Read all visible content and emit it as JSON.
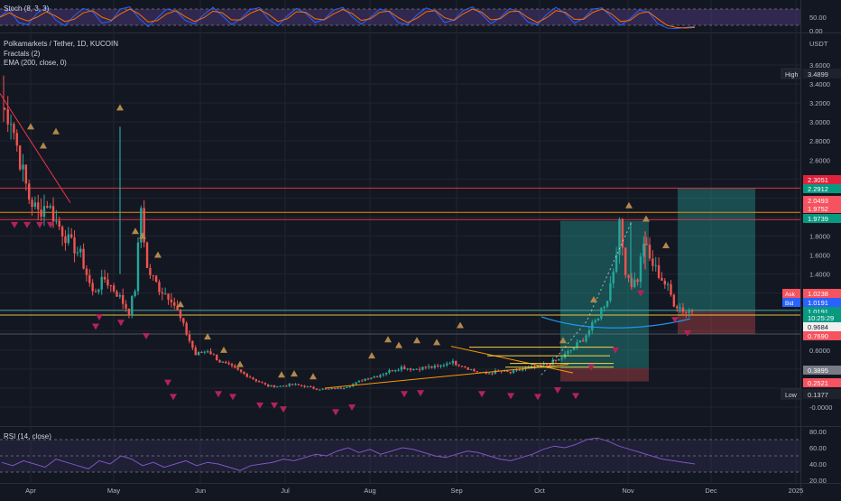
{
  "stoch": {
    "title": "Stoch (8, 3, 3)",
    "ticks": [
      "50.00",
      "0.00"
    ],
    "tick_values": [
      50,
      0
    ]
  },
  "main": {
    "symbol": "Polkamarkets / Tether, 1D, KUCOIN",
    "indicators": [
      "Fractals (2)",
      "EMA (200, close, 0)"
    ],
    "currency": "USDT",
    "ticks": [
      "3.6000",
      "3.4000",
      "3.2000",
      "3.0000",
      "2.8000",
      "2.6000",
      "2.4000",
      "2.2000",
      "2.0000",
      "1.8000",
      "1.6000",
      "1.4000",
      "1.2000",
      "1.0000",
      "0.8000",
      "0.6000",
      "0.4000",
      "0.2000",
      "-0.0000"
    ],
    "hidden_ticks": [
      "2.4000",
      "2.2000",
      "2.0000",
      "1.2000",
      "1.0000",
      "0.8000",
      "0.4000",
      "0.2000"
    ]
  },
  "price_labels": [
    {
      "text": "High",
      "value": "3.4899",
      "kind": "marker"
    },
    {
      "value": "2.3051",
      "color": "#e0213c"
    },
    {
      "value": "2.2912",
      "color": "#089981"
    },
    {
      "value": "2.0493",
      "color": "#f7525f"
    },
    {
      "value": "1.9752",
      "color": "#f7525f"
    },
    {
      "value": "1.9739",
      "color": "#089981"
    },
    {
      "text": "Ask",
      "value": "1.0238",
      "color": "#f7525f"
    },
    {
      "text": "Bid",
      "value": "1.0191",
      "color": "#2962ff"
    },
    {
      "value": "1.0191",
      "color": "#089981"
    },
    {
      "value": "10:25:29",
      "color": "#089981"
    },
    {
      "value": "0.9684",
      "color": "#f0f0f0"
    },
    {
      "value": "0.7690",
      "color": "#f7525f"
    },
    {
      "value": "0.3895",
      "color": "#787b86"
    },
    {
      "value": "0.2521",
      "color": "#f7525f"
    },
    {
      "text": "Low",
      "value": "0.1377",
      "kind": "marker"
    }
  ],
  "rsi": {
    "title": "RSI (14, close)",
    "ticks": [
      "80.00",
      "60.00",
      "40.00",
      "20.00"
    ],
    "tick_values": [
      80,
      60,
      40,
      20
    ]
  },
  "x_axis": {
    "labels": [
      "Apr",
      "May",
      "Jun",
      "Jul",
      "Aug",
      "Sep",
      "Oct",
      "Nov",
      "Dec",
      "2025"
    ]
  },
  "colors": {
    "up": "#26a69a",
    "down": "#ef5350",
    "bg": "#131722",
    "grid": "#1f2430",
    "fractal_up": "#b2884a",
    "fractal_down": "#b0235a",
    "stoch_k": "#2962ff",
    "stoch_d": "#ff6d00",
    "rsi": "#7e57c2",
    "ema": "#2196f3",
    "orange_line": "#ff9800",
    "red_line": "#f23645",
    "yellow_line": "#f5d547"
  },
  "chart_data": [
    {
      "type": "line",
      "name": "stochastic",
      "title": "Stoch (8, 3, 3)",
      "ylim": [
        0,
        100
      ],
      "series": [
        {
          "values": [
            52,
            78,
            30,
            22,
            65,
            85,
            40,
            18,
            55,
            82,
            70,
            28,
            35,
            80,
            88,
            46,
            15,
            48,
            80,
            72,
            38,
            25,
            60,
            86,
            55,
            22,
            44,
            78,
            85,
            42,
            18,
            54,
            82,
            64,
            30,
            42,
            76,
            86,
            52,
            24,
            50,
            80,
            70,
            30,
            22,
            58,
            84,
            72,
            30,
            40,
            74,
            88,
            60,
            26,
            48,
            82,
            70,
            32,
            22,
            60,
            86,
            64,
            28,
            46,
            80,
            84,
            50,
            20,
            44,
            76,
            68,
            26,
            10,
            8,
            12,
            16
          ]
        },
        {
          "values": [
            50,
            66,
            48,
            36,
            50,
            70,
            54,
            34,
            42,
            66,
            74,
            50,
            38,
            62,
            80,
            62,
            32,
            38,
            62,
            74,
            52,
            34,
            48,
            72,
            66,
            40,
            40,
            64,
            78,
            60,
            34,
            44,
            70,
            68,
            44,
            40,
            62,
            78,
            64,
            38,
            44,
            68,
            72,
            48,
            30,
            46,
            70,
            74,
            48,
            38,
            62,
            80,
            68,
            40,
            44,
            70,
            72,
            48,
            30,
            48,
            74,
            68,
            42,
            42,
            68,
            80,
            62,
            34,
            38,
            64,
            70,
            44,
            20,
            12,
            10,
            12
          ]
        }
      ]
    },
    {
      "type": "candlestick",
      "title": "Polkamarkets / Tether, 1D, KUCOIN",
      "ylabel": "USDT",
      "ylim": [
        -0.1,
        3.8
      ],
      "x": [
        "Apr",
        "May",
        "Jun",
        "Jul",
        "Aug",
        "Sep",
        "Oct",
        "Nov",
        "Dec",
        "2025"
      ],
      "approx_close_path": [
        [
          0,
          3.15
        ],
        [
          3,
          3.05
        ],
        [
          6,
          2.6
        ],
        [
          9,
          2.2
        ],
        [
          12,
          2.05
        ],
        [
          15,
          2.15
        ],
        [
          18,
          1.95
        ],
        [
          22,
          1.75
        ],
        [
          26,
          1.6
        ],
        [
          30,
          1.2
        ],
        [
          34,
          1.35
        ],
        [
          38,
          1.2
        ],
        [
          42,
          1.0
        ],
        [
          44,
          1.25
        ],
        [
          46,
          2.1
        ],
        [
          48,
          1.45
        ],
        [
          52,
          1.25
        ],
        [
          56,
          1.15
        ],
        [
          58,
          1.0
        ],
        [
          60,
          0.85
        ],
        [
          64,
          0.55
        ],
        [
          68,
          0.6
        ],
        [
          72,
          0.48
        ],
        [
          76,
          0.42
        ],
        [
          80,
          0.35
        ],
        [
          84,
          0.28
        ],
        [
          88,
          0.22
        ],
        [
          92,
          0.22
        ],
        [
          96,
          0.24
        ],
        [
          100,
          0.22
        ],
        [
          104,
          0.19
        ],
        [
          108,
          0.19
        ],
        [
          112,
          0.2
        ],
        [
          116,
          0.24
        ],
        [
          120,
          0.3
        ],
        [
          124,
          0.33
        ],
        [
          128,
          0.38
        ],
        [
          132,
          0.42
        ],
        [
          136,
          0.4
        ],
        [
          140,
          0.42
        ],
        [
          144,
          0.42
        ],
        [
          148,
          0.48
        ],
        [
          152,
          0.44
        ],
        [
          156,
          0.38
        ],
        [
          160,
          0.35
        ],
        [
          164,
          0.38
        ],
        [
          168,
          0.36
        ],
        [
          172,
          0.4
        ],
        [
          176,
          0.42
        ],
        [
          180,
          0.45
        ],
        [
          184,
          0.5
        ],
        [
          188,
          0.6
        ],
        [
          192,
          0.72
        ],
        [
          196,
          0.9
        ],
        [
          200,
          1.15
        ],
        [
          202,
          1.45
        ],
        [
          204,
          1.9
        ],
        [
          206,
          1.45
        ],
        [
          208,
          1.3
        ],
        [
          210,
          1.35
        ],
        [
          212,
          1.75
        ],
        [
          214,
          1.55
        ],
        [
          216,
          1.45
        ],
        [
          218,
          1.35
        ],
        [
          220,
          1.25
        ],
        [
          222,
          1.1
        ],
        [
          224,
          1.05
        ],
        [
          226,
          1.0
        ],
        [
          228,
          1.02
        ]
      ],
      "high": 3.4899,
      "low": 0.1377,
      "last": 1.0191,
      "ask": 1.0238,
      "bid": 1.0191,
      "countdown": "10:25:29",
      "levels": [
        2.3051,
        2.2912,
        2.0493,
        1.9752,
        1.9739,
        0.9684,
        0.769,
        0.3895,
        0.2521
      ],
      "annotations": [
        {
          "kind": "long position",
          "entry": 0.41,
          "target": 1.96,
          "stop": 0.27
        },
        {
          "kind": "long position",
          "entry": 1.01,
          "target": 2.3,
          "stop": 0.77
        },
        {
          "kind": "horizontal line",
          "value": 1.9739
        },
        {
          "kind": "horizontal line",
          "value": 1.0191
        },
        {
          "kind": "horizontal line",
          "value": 2.0493
        },
        {
          "kind": "horizontal line",
          "value": 2.3051
        }
      ]
    },
    {
      "type": "line",
      "name": "rsi",
      "title": "RSI (14, close)",
      "ylim": [
        20,
        80
      ],
      "series": [
        {
          "values": [
            42,
            38,
            44,
            40,
            36,
            46,
            42,
            38,
            34,
            44,
            40,
            50,
            46,
            38,
            42,
            36,
            40,
            44,
            38,
            42,
            40,
            36,
            32,
            38,
            40,
            42,
            46,
            44,
            48,
            52,
            50,
            56,
            60,
            54,
            58,
            52,
            56,
            60,
            58,
            54,
            50,
            48,
            52,
            56,
            54,
            50,
            46,
            44,
            48,
            52,
            58,
            62,
            60,
            64,
            70,
            72,
            68,
            62,
            58,
            54,
            50,
            46,
            44,
            42,
            40
          ]
        }
      ]
    }
  ]
}
